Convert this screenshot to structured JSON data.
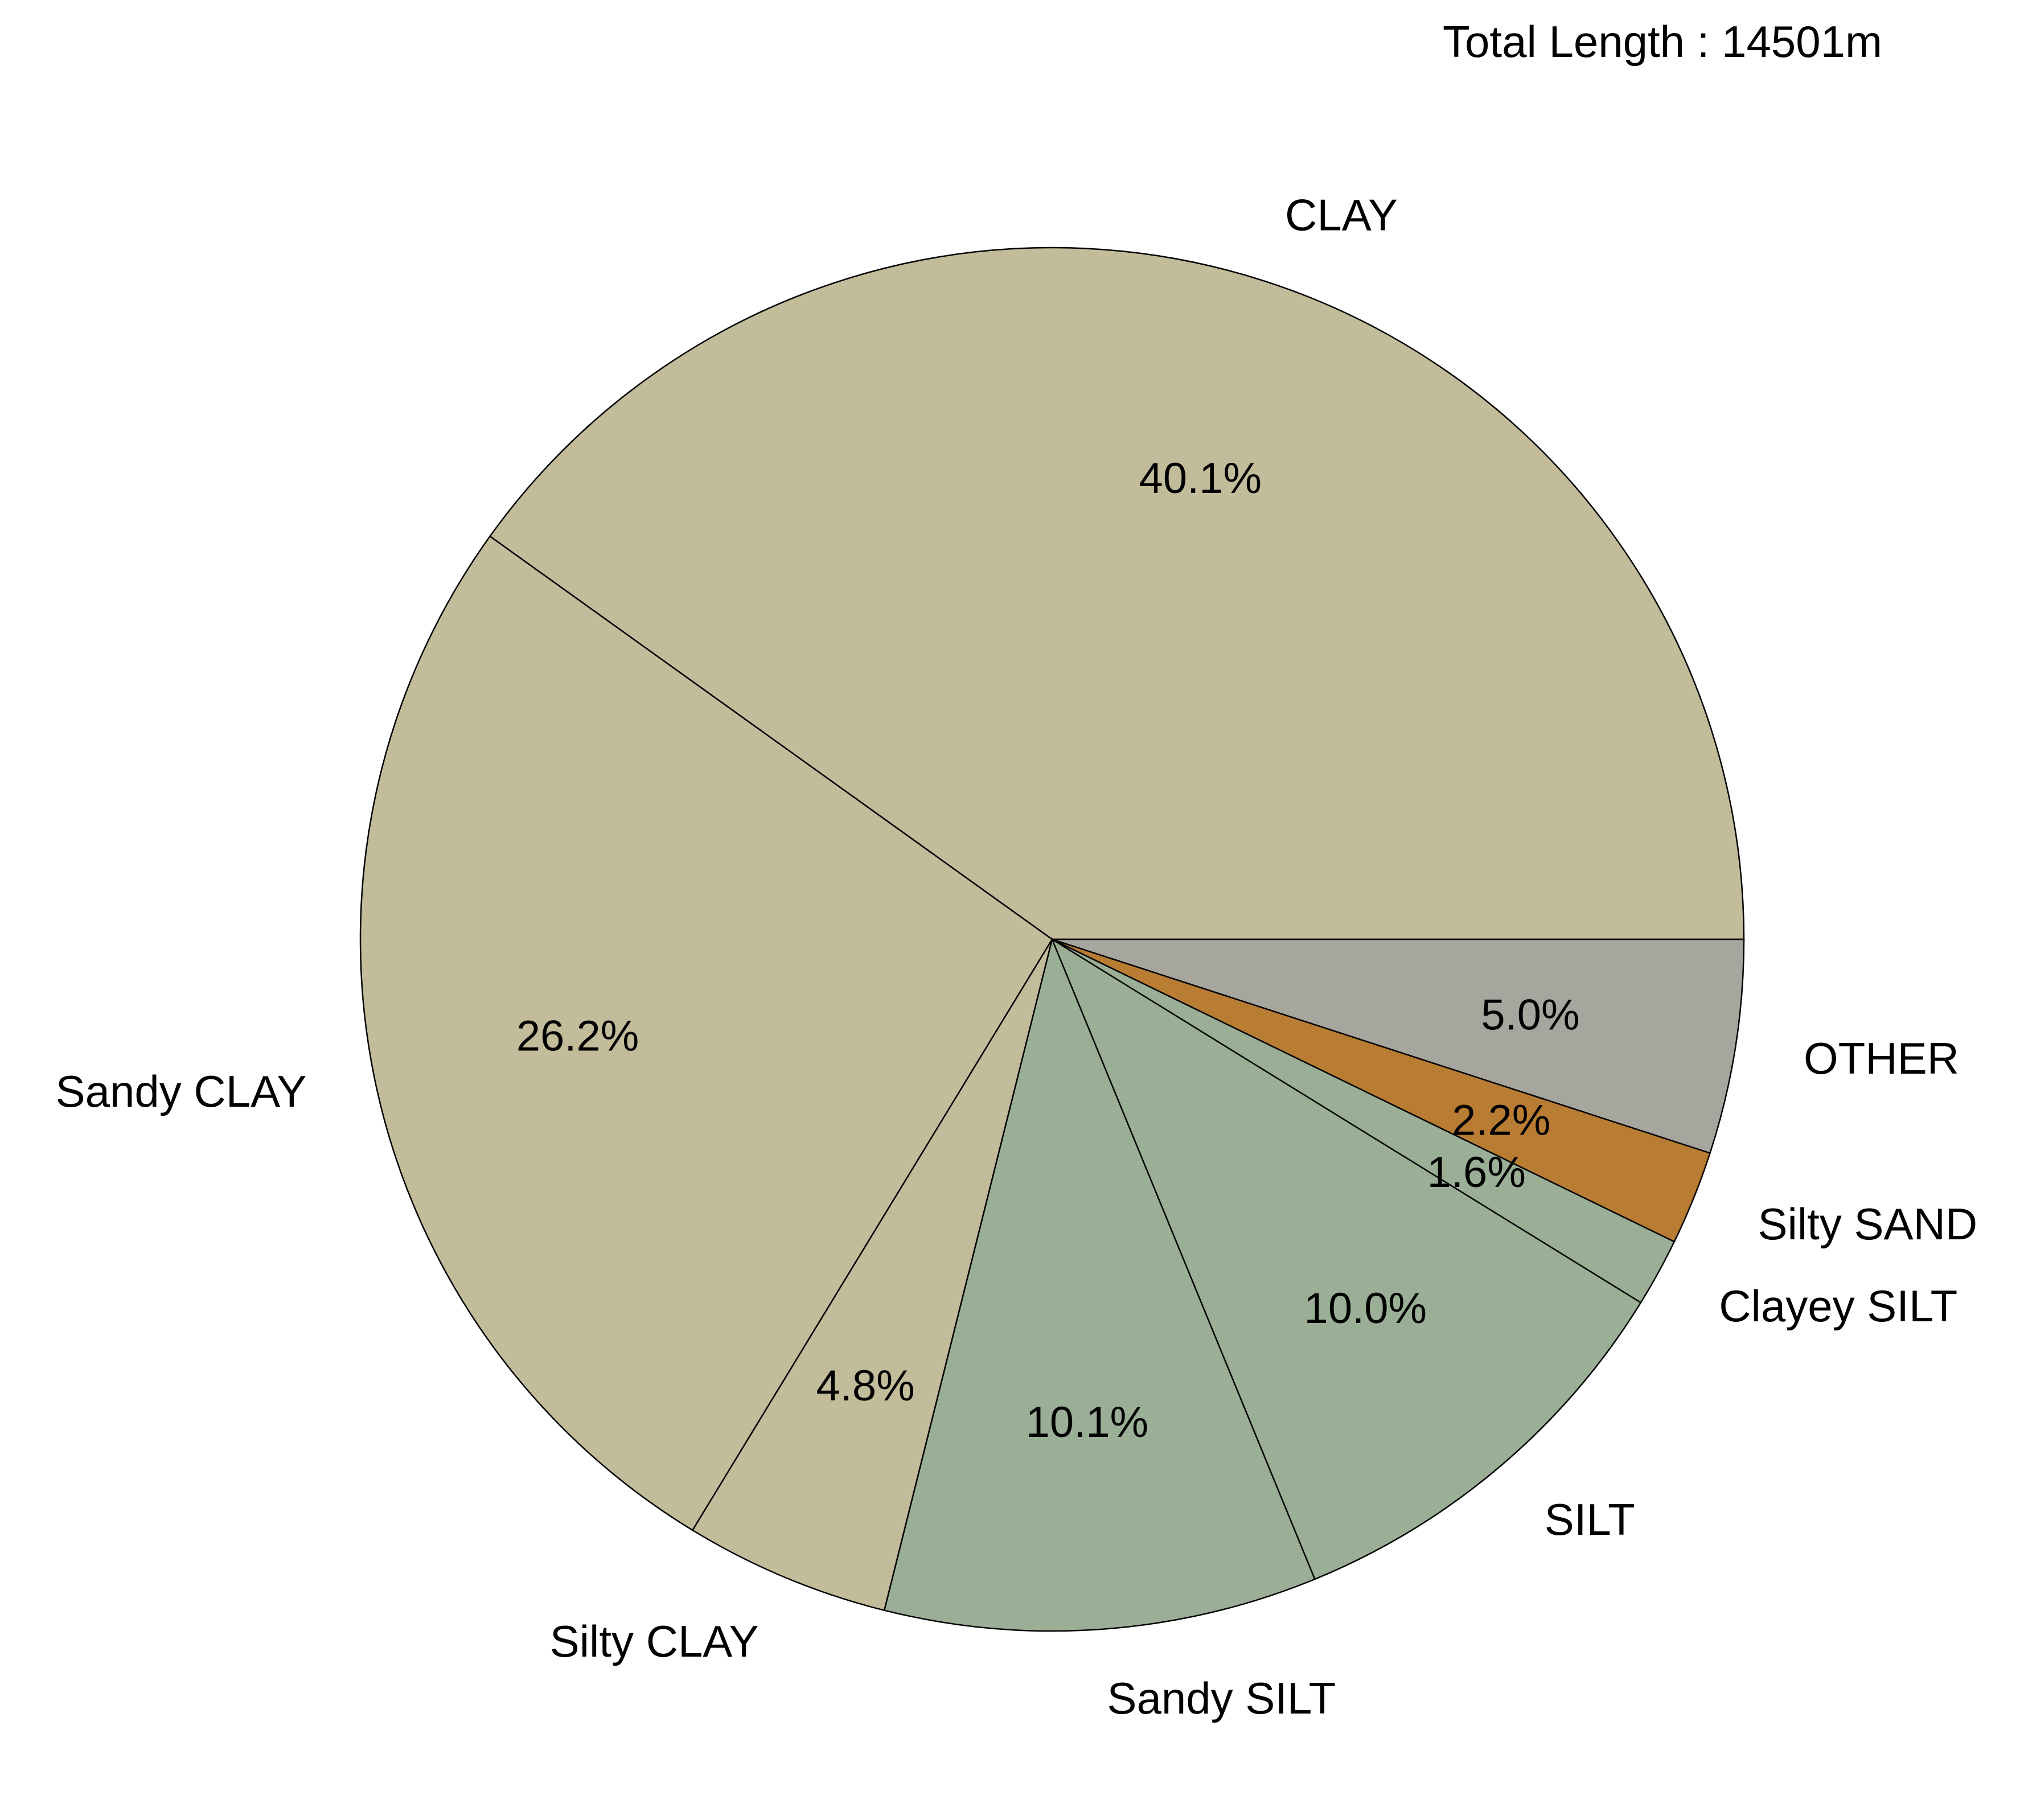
{
  "chart_data": {
    "type": "pie",
    "annotation": "Total Length : 14501m",
    "start_angle_deg": 0,
    "direction": "counterclockwise",
    "slices": [
      {
        "label": "CLAY",
        "value": 40.1,
        "pct_label": "40.1%",
        "color": "#c3bc9a"
      },
      {
        "label": "Sandy CLAY",
        "value": 26.2,
        "pct_label": "26.2%",
        "color": "#c3bc9a"
      },
      {
        "label": "Silty CLAY",
        "value": 4.8,
        "pct_label": "4.8%",
        "color": "#c3bc9a"
      },
      {
        "label": "Sandy SILT",
        "value": 10.1,
        "pct_label": "10.1%",
        "color": "#9aaf96"
      },
      {
        "label": "SILT",
        "value": 10.0,
        "pct_label": "10.0%",
        "color": "#9aaf96"
      },
      {
        "label": "Clayey SILT",
        "value": 1.6,
        "pct_label": "1.6%",
        "color": "#9aaf96"
      },
      {
        "label": "Silty SAND",
        "value": 2.2,
        "pct_label": "2.2%",
        "color": "#b97c33"
      },
      {
        "label": "OTHER",
        "value": 5.0,
        "pct_label": "5.0%",
        "color": "#a7a69e"
      }
    ]
  }
}
